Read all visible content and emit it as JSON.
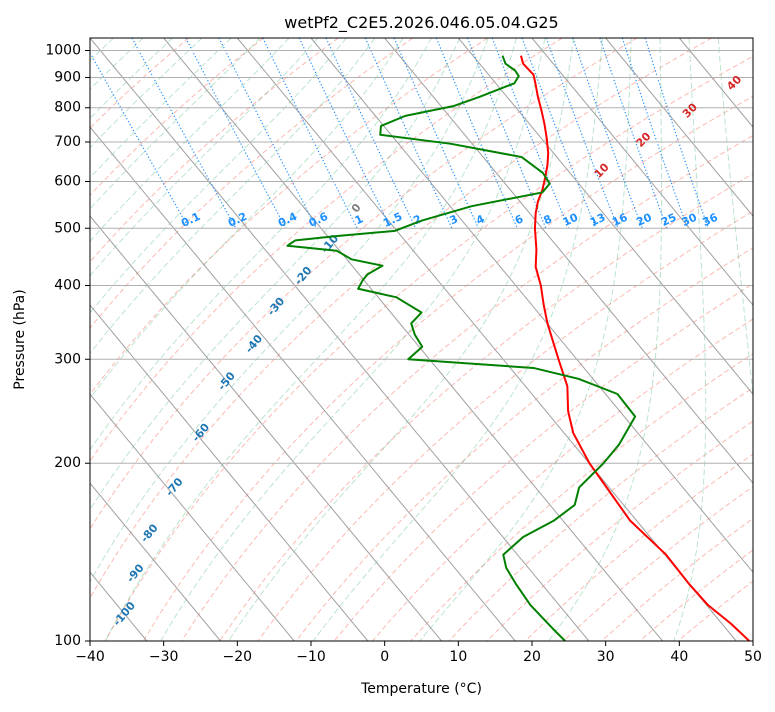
{
  "chart_data": {
    "type": "skew-t",
    "title": "wetPf2_C2E5.2026.046.05.04.G25",
    "xlabel": "Temperature (°C)",
    "ylabel": "Pressure (hPa)",
    "xlim": [
      -40,
      50
    ],
    "ylim": [
      1050,
      100
    ],
    "y_scale": "log",
    "grid": true,
    "x_ticks": [
      {
        "value": -40,
        "label": "−40"
      },
      {
        "value": -30,
        "label": "−30"
      },
      {
        "value": -20,
        "label": "−20"
      },
      {
        "value": -10,
        "label": "−10"
      },
      {
        "value": 0,
        "label": "0"
      },
      {
        "value": 10,
        "label": "10"
      },
      {
        "value": 20,
        "label": "20"
      },
      {
        "value": 30,
        "label": "30"
      },
      {
        "value": 40,
        "label": "40"
      },
      {
        "value": 50,
        "label": "50"
      }
    ],
    "y_ticks": [
      {
        "value": 100,
        "label": "100"
      },
      {
        "value": 200,
        "label": "200"
      },
      {
        "value": 300,
        "label": "300"
      },
      {
        "value": 400,
        "label": "400"
      },
      {
        "value": 500,
        "label": "500"
      },
      {
        "value": 600,
        "label": "600"
      },
      {
        "value": 700,
        "label": "700"
      },
      {
        "value": 800,
        "label": "800"
      },
      {
        "value": 900,
        "label": "900"
      },
      {
        "value": 1000,
        "label": "1000"
      }
    ],
    "isotherm_labels": [
      {
        "text": "-100",
        "x": -35.3,
        "p": 111
      },
      {
        "text": "-90",
        "x": -33.8,
        "p": 130
      },
      {
        "text": "-80",
        "x": -31.9,
        "p": 152
      },
      {
        "text": "-70",
        "x": -28.5,
        "p": 182
      },
      {
        "text": "-60",
        "x": -24.9,
        "p": 225
      },
      {
        "text": "-50",
        "x": -21.4,
        "p": 275
      },
      {
        "text": "-40",
        "x": -17.7,
        "p": 318
      },
      {
        "text": "-30",
        "x": -14.7,
        "p": 368
      },
      {
        "text": "-20",
        "x": -11.0,
        "p": 415
      },
      {
        "text": "-10",
        "x": -7.4,
        "p": 470
      },
      {
        "text": "0",
        "x": -3.8,
        "p": 540
      }
    ],
    "mixing_ratio_labels": [
      "0.1",
      "0.2",
      "0.4",
      "0.6",
      "1",
      "1.5",
      "2",
      "3",
      "4",
      "6",
      "8",
      "10",
      "13",
      "16",
      "20",
      "25",
      "30",
      "36"
    ],
    "moist_adiabat_labels": [
      {
        "text": "10",
        "x": 29.5,
        "p": 625
      },
      {
        "text": "20",
        "x": 35.2,
        "p": 705
      },
      {
        "text": "30",
        "x": 41.5,
        "p": 790
      },
      {
        "text": "40",
        "x": 47.5,
        "p": 880
      }
    ],
    "series": [
      {
        "color": "#ff0000",
        "points": [
          [
            18.5,
            980
          ],
          [
            18.8,
            950
          ],
          [
            20.2,
            910
          ],
          [
            20.5,
            875
          ],
          [
            20.8,
            835
          ],
          [
            21.3,
            790
          ],
          [
            21.7,
            750
          ],
          [
            22.0,
            710
          ],
          [
            22.2,
            670
          ],
          [
            22.1,
            640
          ],
          [
            21.8,
            610
          ],
          [
            21.4,
            580
          ],
          [
            20.8,
            555
          ],
          [
            20.5,
            530
          ],
          [
            20.4,
            500
          ],
          [
            20.6,
            460
          ],
          [
            20.5,
            430
          ],
          [
            21.2,
            400
          ],
          [
            21.6,
            370
          ],
          [
            22.1,
            345
          ],
          [
            23.6,
            300
          ],
          [
            24.8,
            270
          ],
          [
            24.9,
            245
          ],
          [
            25.6,
            225
          ],
          [
            27.8,
            200
          ],
          [
            30.4,
            180
          ],
          [
            33.3,
            160
          ],
          [
            38.2,
            140
          ],
          [
            41.3,
            125
          ],
          [
            43.9,
            115
          ],
          [
            47.0,
            107
          ],
          [
            49.5,
            100
          ]
        ]
      },
      {
        "color": "#008000",
        "points": [
          [
            16.0,
            980
          ],
          [
            16.4,
            950
          ],
          [
            17.7,
            925
          ],
          [
            18.2,
            905
          ],
          [
            17.6,
            880
          ],
          [
            12.9,
            835
          ],
          [
            9.3,
            805
          ],
          [
            2.8,
            775
          ],
          [
            -0.5,
            745
          ],
          [
            -0.6,
            720
          ],
          [
            9.0,
            695
          ],
          [
            18.6,
            660
          ],
          [
            21.5,
            620
          ],
          [
            22.4,
            595
          ],
          [
            21.4,
            575
          ],
          [
            11.8,
            545
          ],
          [
            5.0,
            515
          ],
          [
            1.4,
            495
          ],
          [
            -6.6,
            485
          ],
          [
            -12.1,
            477
          ],
          [
            -12.9,
            470
          ],
          [
            -13.2,
            467
          ],
          [
            -6.5,
            458
          ],
          [
            -4.5,
            443
          ],
          [
            -0.3,
            432
          ],
          [
            -2.3,
            418
          ],
          [
            -3.0,
            408
          ],
          [
            -3.6,
            395
          ],
          [
            1.6,
            382
          ],
          [
            5.0,
            360
          ],
          [
            3.6,
            345
          ],
          [
            4.1,
            330
          ],
          [
            5.1,
            315
          ],
          [
            3.2,
            300
          ],
          [
            20.2,
            290
          ],
          [
            26.3,
            278
          ],
          [
            31.6,
            262
          ],
          [
            34.0,
            240
          ],
          [
            31.8,
            215
          ],
          [
            29.7,
            200
          ],
          [
            26.4,
            182
          ],
          [
            25.8,
            170
          ],
          [
            23.0,
            160
          ],
          [
            18.8,
            150
          ],
          [
            16.1,
            140
          ],
          [
            16.5,
            133
          ],
          [
            17.8,
            125
          ],
          [
            19.8,
            115
          ],
          [
            22.8,
            105
          ],
          [
            24.5,
            100
          ]
        ]
      }
    ]
  }
}
